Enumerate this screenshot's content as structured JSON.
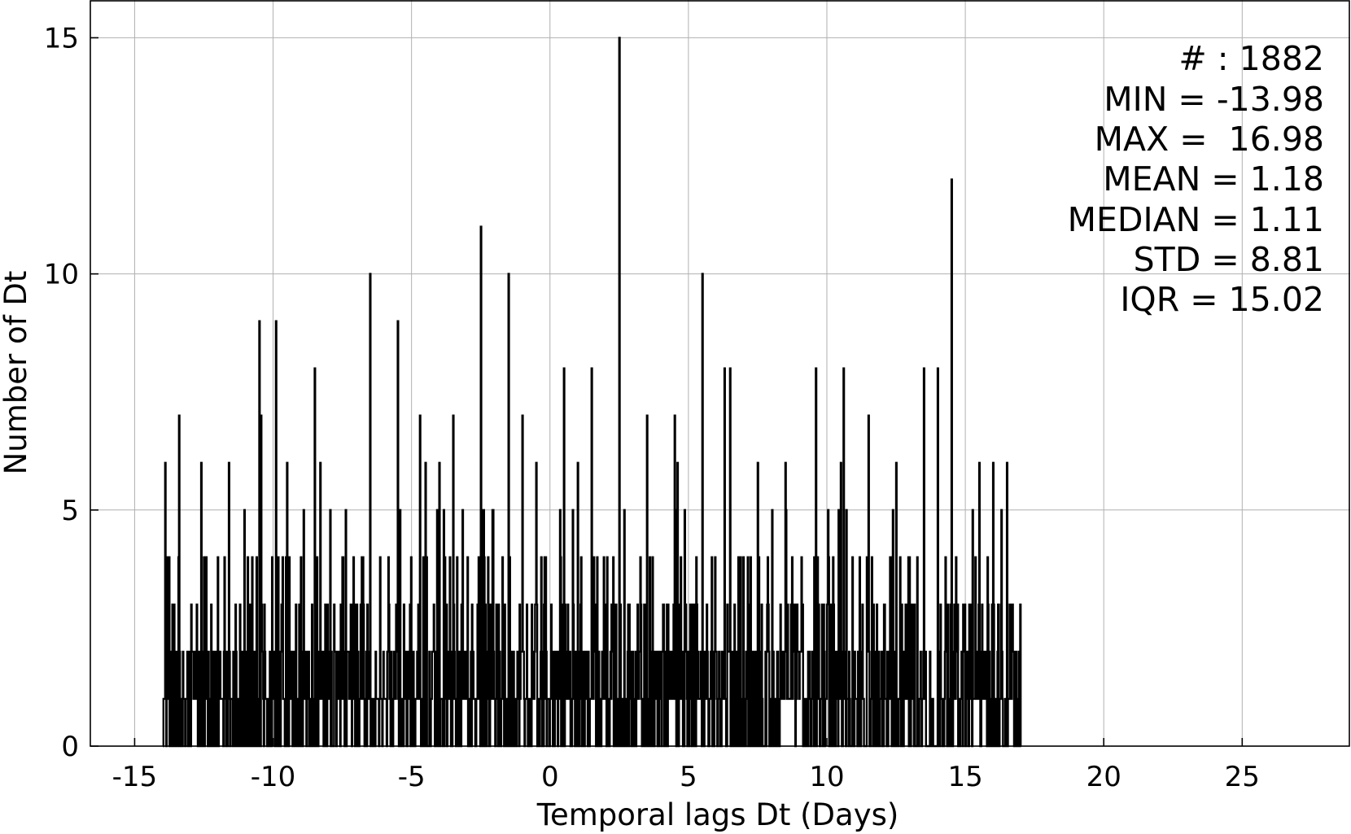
{
  "chart_data": {
    "type": "bar",
    "title": "",
    "xlabel": "Temporal lags Dt (Days)",
    "ylabel": "Number of Dt",
    "xlim": [
      -16.6,
      28.9
    ],
    "ylim": [
      0,
      15.8
    ],
    "xticks": [
      -15,
      -10,
      -5,
      0,
      5,
      10,
      15,
      20,
      25
    ],
    "xtick_labels": [
      "-15",
      "-10",
      "-5",
      "0",
      "5",
      "10",
      "15",
      "20",
      "25"
    ],
    "yticks": [
      0,
      5,
      10,
      15
    ],
    "ytick_labels": [
      "0",
      "5",
      "10",
      "15"
    ],
    "grid": true,
    "data_range": [
      -13.98,
      16.98
    ],
    "bin_width": 0.02,
    "bar_color": "#000000",
    "peaks": [
      {
        "x": -13.9,
        "y": 6
      },
      {
        "x": -13.4,
        "y": 7
      },
      {
        "x": -12.6,
        "y": 6
      },
      {
        "x": -11.6,
        "y": 6
      },
      {
        "x": -10.5,
        "y": 9
      },
      {
        "x": -10.45,
        "y": 7
      },
      {
        "x": -9.9,
        "y": 9
      },
      {
        "x": -9.5,
        "y": 6
      },
      {
        "x": -8.5,
        "y": 8
      },
      {
        "x": -8.3,
        "y": 6
      },
      {
        "x": -6.5,
        "y": 10
      },
      {
        "x": -5.5,
        "y": 9
      },
      {
        "x": -4.7,
        "y": 7
      },
      {
        "x": -4.5,
        "y": 6
      },
      {
        "x": -4.0,
        "y": 6
      },
      {
        "x": -3.5,
        "y": 7
      },
      {
        "x": -2.5,
        "y": 11
      },
      {
        "x": -1.5,
        "y": 10
      },
      {
        "x": -1.0,
        "y": 7
      },
      {
        "x": -0.5,
        "y": 6
      },
      {
        "x": 0.5,
        "y": 8
      },
      {
        "x": 1.0,
        "y": 6
      },
      {
        "x": 1.5,
        "y": 8
      },
      {
        "x": 2.5,
        "y": 15
      },
      {
        "x": 3.5,
        "y": 7
      },
      {
        "x": 4.5,
        "y": 7
      },
      {
        "x": 4.6,
        "y": 6
      },
      {
        "x": 5.5,
        "y": 10
      },
      {
        "x": 6.3,
        "y": 8
      },
      {
        "x": 6.5,
        "y": 8
      },
      {
        "x": 7.5,
        "y": 6
      },
      {
        "x": 8.5,
        "y": 6
      },
      {
        "x": 9.6,
        "y": 8
      },
      {
        "x": 10.5,
        "y": 6
      },
      {
        "x": 10.6,
        "y": 8
      },
      {
        "x": 11.5,
        "y": 7
      },
      {
        "x": 12.5,
        "y": 6
      },
      {
        "x": 13.5,
        "y": 8
      },
      {
        "x": 14.0,
        "y": 8
      },
      {
        "x": 14.5,
        "y": 12
      },
      {
        "x": 15.5,
        "y": 6
      },
      {
        "x": 16.0,
        "y": 6
      },
      {
        "x": 16.5,
        "y": 6
      },
      {
        "x": 16.98,
        "y": 3
      }
    ],
    "annotations": [
      "# : 1882",
      "MIN = -13.98",
      "MAX =  16.98",
      "MEAN = 1.18",
      "MEDIAN = 1.11",
      "STD = 8.81",
      "IQR = 15.02"
    ]
  }
}
